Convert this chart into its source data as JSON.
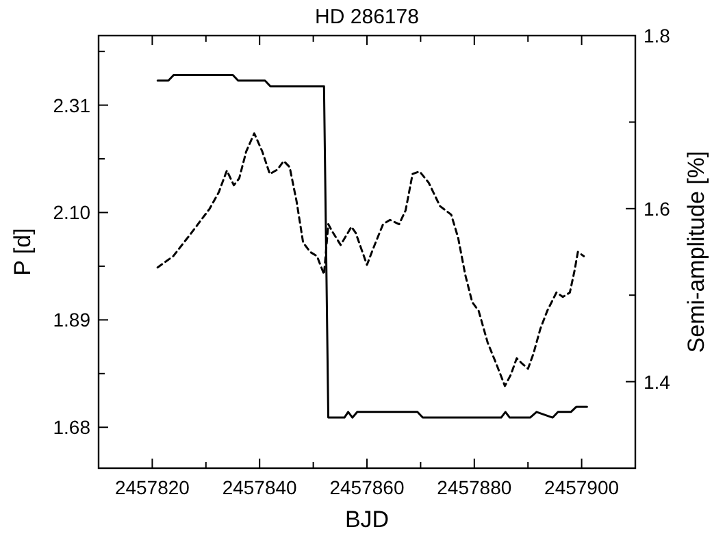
{
  "chart_data": {
    "type": "line",
    "title": "HD 286178",
    "xlabel": "BJD",
    "ylabel": "P [d]",
    "y2label": "Semi-amplitude [%]",
    "xlim": [
      2457810,
      2457910
    ],
    "xticks": [
      {
        "value": 2457810,
        "label": null
      },
      2457820,
      {
        "value": 2457830,
        "label": null
      },
      2457840,
      {
        "value": 2457850,
        "label": null
      },
      2457860,
      {
        "value": 2457870,
        "label": null
      },
      2457880,
      {
        "value": 2457890,
        "label": null
      },
      2457900
    ],
    "ylim": [
      1.6,
      2.446
    ],
    "yticks": [
      1.68,
      {
        "value": 1.785,
        "label": null
      },
      1.89,
      {
        "value": 1.995,
        "label": null
      },
      {
        "value": 2.1,
        "label": "2.10"
      },
      {
        "value": 2.205,
        "label": null
      },
      2.31,
      {
        "value": 2.415,
        "label": null
      }
    ],
    "y2lim": [
      1.3,
      1.8
    ],
    "y2ticks": [
      {
        "value": 1.3,
        "label": null
      },
      1.4,
      {
        "value": 1.5,
        "label": null
      },
      1.6,
      {
        "value": 1.7,
        "label": null
      },
      1.8
    ],
    "grid": false,
    "marker": "none",
    "series": [
      {
        "color": "#000000",
        "line_style": "solid",
        "x": [
          2457821.0,
          2457823.0,
          2457824.0,
          2457835.0,
          2457836.0,
          2457841.0,
          2457842.0,
          2457852.0,
          2457852.8,
          2457855.8,
          2457856.5,
          2457857.3,
          2457858.2,
          2457869.4,
          2457870.4,
          2457885.0,
          2457885.8,
          2457886.6,
          2457890.4,
          2457891.6,
          2457894.6,
          2457895.6,
          2457898.0,
          2457899.0,
          2457901.0
        ],
        "values": [
          2.358,
          2.358,
          2.369,
          2.369,
          2.358,
          2.358,
          2.347,
          2.347,
          1.699,
          1.699,
          1.71,
          1.699,
          1.71,
          1.71,
          1.699,
          1.699,
          1.71,
          1.699,
          1.699,
          1.71,
          1.699,
          1.71,
          1.71,
          1.72,
          1.72
        ]
      },
      {
        "color": "#000000",
        "line_style": "dashed",
        "axis": "y2",
        "x": [
          2457821.0,
          2457823.9,
          2457827.3,
          2457830.7,
          2457832.4,
          2457833.9,
          2457835.2,
          2457836.2,
          2457837.5,
          2457839.0,
          2457840.5,
          2457841.9,
          2457843.3,
          2457844.5,
          2457845.6,
          2457846.9,
          2457848.1,
          2457849.4,
          2457850.7,
          2457852.0,
          2457852.8,
          2457853.5,
          2457855.1,
          2457857.1,
          2457857.9,
          2457860.0,
          2457861.3,
          2457863.0,
          2457864.3,
          2457866.0,
          2457867.2,
          2457868.5,
          2457869.8,
          2457871.5,
          2457873.6,
          2457875.7,
          2457877.0,
          2457878.3,
          2457879.6,
          2457880.8,
          2457882.5,
          2457884.2,
          2457885.7,
          2457886.8,
          2457887.9,
          2457888.9,
          2457890.0,
          2457891.0,
          2457892.3,
          2457893.6,
          2457895.3,
          2457896.5,
          2457897.8,
          2457898.7,
          2457899.3,
          2457900.4
        ],
        "values": [
          1.532,
          1.545,
          1.572,
          1.6,
          1.619,
          1.644,
          1.627,
          1.635,
          1.666,
          1.687,
          1.666,
          1.64,
          1.645,
          1.655,
          1.648,
          1.608,
          1.561,
          1.55,
          1.545,
          1.524,
          1.582,
          1.574,
          1.558,
          1.579,
          1.572,
          1.535,
          1.556,
          1.582,
          1.587,
          1.582,
          1.598,
          1.64,
          1.643,
          1.63,
          1.603,
          1.593,
          1.566,
          1.524,
          1.492,
          1.482,
          1.445,
          1.419,
          1.395,
          1.408,
          1.427,
          1.421,
          1.415,
          1.432,
          1.461,
          1.482,
          1.503,
          1.498,
          1.503,
          1.529,
          1.55,
          1.545
        ]
      }
    ]
  }
}
